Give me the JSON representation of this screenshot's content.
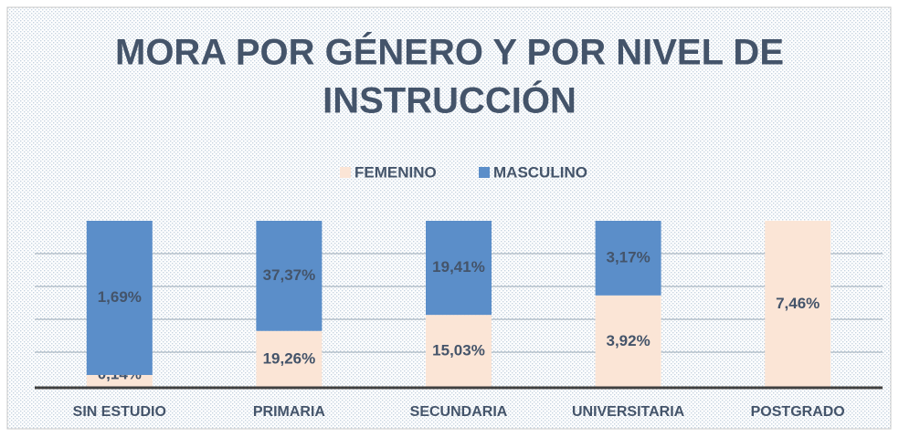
{
  "chart_data": {
    "type": "bar",
    "stacking": "percent",
    "title": [
      "MORA POR GÉNERO Y POR NIVEL DE",
      "INSTRUCCIÓN"
    ],
    "categories": [
      "SIN ESTUDIO",
      "PRIMARIA",
      "SECUNDARIA",
      "UNIVERSITARIA",
      "POSTGRADO"
    ],
    "series": [
      {
        "name": "FEMENINO",
        "color": "#fbe5d6",
        "values": [
          0.14,
          19.26,
          15.03,
          3.92,
          7.46
        ],
        "value_labels": [
          "0,14%",
          "19,26%",
          "15,03%",
          "3,92%",
          "7,46%"
        ]
      },
      {
        "name": "MASCULINO",
        "color": "#5b8ec9",
        "values": [
          1.69,
          37.37,
          19.41,
          3.17,
          null
        ],
        "value_labels": [
          "1,69%",
          "37,37%",
          "19,41%",
          "3,17%",
          null
        ]
      }
    ],
    "legend": "top"
  }
}
